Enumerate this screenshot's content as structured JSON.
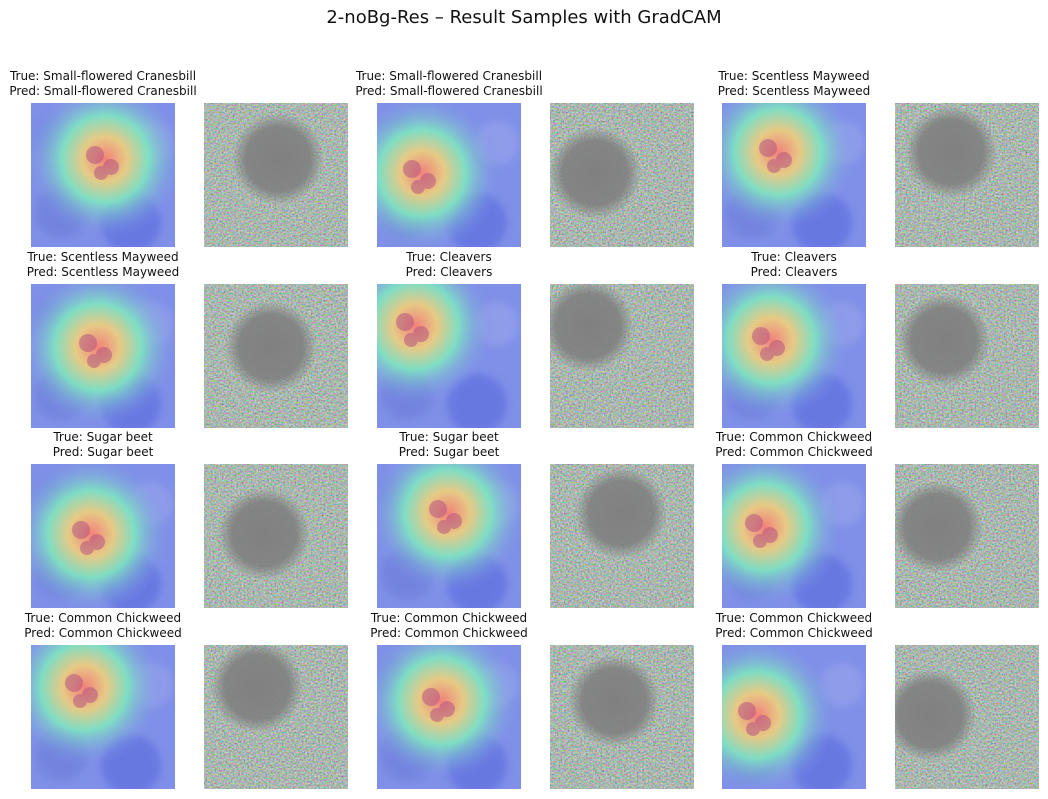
{
  "figure": {
    "title": "2-noBg-Res – Result Samples with GradCAM"
  },
  "samples": [
    {
      "true_label": "True: Small-flowered Cranesbill",
      "pred_label": "Pred: Small-flowered Cranesbill"
    },
    {
      "true_label": "True: Small-flowered Cranesbill",
      "pred_label": "Pred: Small-flowered Cranesbill"
    },
    {
      "true_label": "True: Scentless Mayweed",
      "pred_label": "Pred: Scentless Mayweed"
    },
    {
      "true_label": "True: Scentless Mayweed",
      "pred_label": "Pred: Scentless Mayweed"
    },
    {
      "true_label": "True: Cleavers",
      "pred_label": "Pred: Cleavers"
    },
    {
      "true_label": "True: Cleavers",
      "pred_label": "Pred: Cleavers"
    },
    {
      "true_label": "True: Sugar beet",
      "pred_label": "Pred: Sugar beet"
    },
    {
      "true_label": "True: Sugar beet",
      "pred_label": "Pred: Sugar beet"
    },
    {
      "true_label": "True: Common Chickweed",
      "pred_label": "Pred: Common Chickweed"
    },
    {
      "true_label": "True: Common Chickweed",
      "pred_label": "Pred: Common Chickweed"
    },
    {
      "true_label": "True: Common Chickweed",
      "pred_label": "Pred: Common Chickweed"
    },
    {
      "true_label": "True: Common Chickweed",
      "pred_label": "Pred: Common Chickweed"
    }
  ],
  "colors": {
    "heatmap_base": "#8090e8",
    "heatmap_hot": "#ff7f6e",
    "heatmap_warm": "#f2d07a",
    "heatmap_mid": "#7fe6c0",
    "gradient_base": "#808080"
  }
}
